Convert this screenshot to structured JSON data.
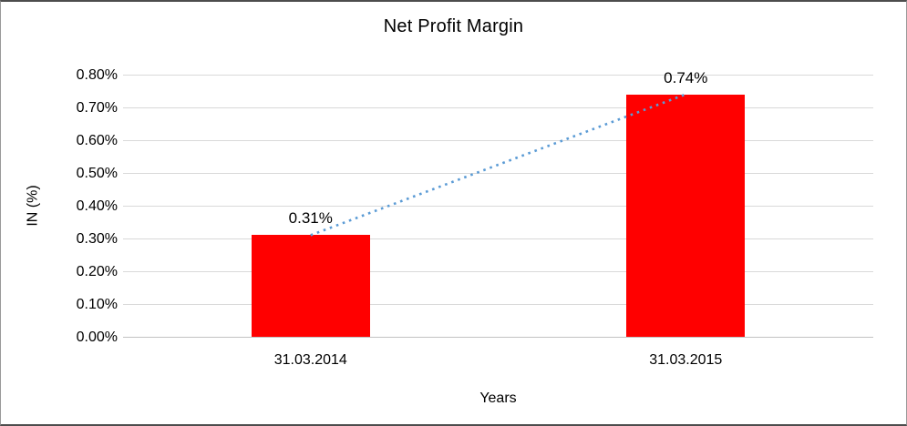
{
  "chart_data": {
    "type": "bar",
    "title": "Net Profit Margin",
    "xlabel": "Years",
    "ylabel": "IN (%)",
    "categories": [
      "31.03.2014",
      "31.03.2015"
    ],
    "values": [
      0.31,
      0.74
    ],
    "value_labels": [
      "0.31%",
      "0.74%"
    ],
    "ylim": [
      0,
      0.8
    ],
    "yticks": [
      0,
      0.1,
      0.2,
      0.3,
      0.4,
      0.5,
      0.6,
      0.7,
      0.8
    ],
    "ytick_labels": [
      "0.00%",
      "0.10%",
      "0.20%",
      "0.30%",
      "0.40%",
      "0.50%",
      "0.60%",
      "0.70%",
      "0.80%"
    ],
    "grid": true,
    "legend": false,
    "bar_color": "#FF0000",
    "gridline_color": "#D9D9D9",
    "text_color": "#000000",
    "trendline": {
      "style": "dotted",
      "color": "#5B9BD5",
      "connects_values": [
        0.31,
        0.74
      ]
    }
  }
}
